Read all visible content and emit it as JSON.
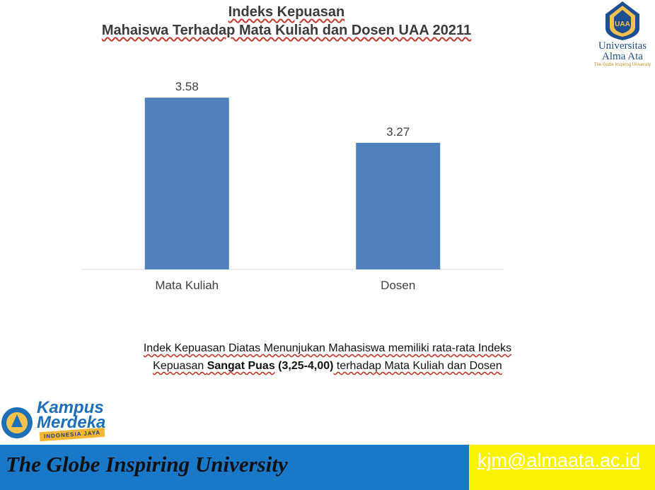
{
  "title": {
    "line1": "Indeks Kepuasan",
    "line2": "Mahaiswa Terhadap Mata Kuliah dan Dosen UAA 20211"
  },
  "logo": {
    "name_line1": "Universitas",
    "name_line2": "Alma Ata",
    "tagline": "The Globe Inspiring University",
    "lettering": "UAA"
  },
  "chart_data": {
    "type": "bar",
    "categories": [
      "Mata Kuliah",
      "Dosen"
    ],
    "values": [
      3.58,
      3.27
    ],
    "data_labels": [
      "3.58",
      "3.27"
    ],
    "bar_color": "#4f81bd",
    "ylim": [
      2.4,
      3.6
    ],
    "grid": false,
    "legend": "none"
  },
  "note": {
    "line1": "Indek Kepuasan Diatas Menunjukan Mahasiswa memiliki rata-rata Indeks",
    "line2_pre": "Kepuasan ",
    "line2_bold": "Sangat Puas",
    "line2_range": "(3,25-4,00)",
    "line2_post": " terhadap Mata Kuliah dan Dosen"
  },
  "kampus_merdeka": {
    "line1": "Kampus",
    "line2": "Merdeka",
    "ribbon": "INDONESIA JAYA"
  },
  "footer": {
    "slogan": "The Globe Inspiring University",
    "email": "kjm@almaata.ac.id",
    "left_color": "#1979c8",
    "right_color": "#f9f200"
  }
}
